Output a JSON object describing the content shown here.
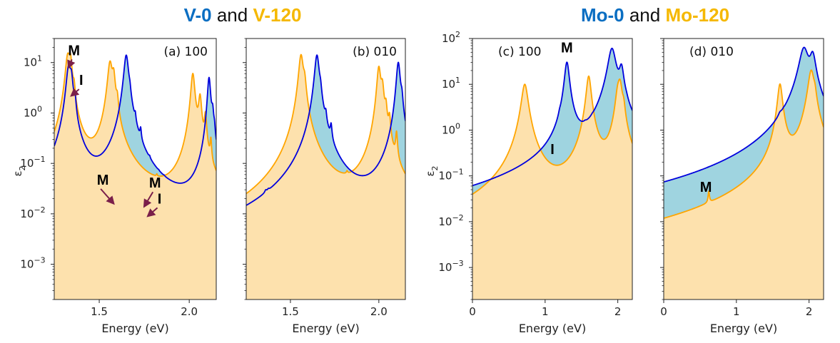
{
  "titles": {
    "left": {
      "a": "V-0",
      "and": " and ",
      "b": "V-120"
    },
    "right": {
      "a": "Mo-0",
      "and": " and ",
      "b": "Mo-120"
    }
  },
  "colors": {
    "series0": "#0000dd",
    "series120": "#ffa500",
    "fill0": "#9fd4e0",
    "fill120": "#fde1ad",
    "title0": "#0a6ec2",
    "title120": "#f5b800",
    "arrow": "#7a1f4a"
  },
  "ylabel": "ε",
  "ylabel_sub": "2",
  "chart_data": [
    {
      "id": "a",
      "type": "line",
      "label": "(a) 100",
      "xlabel": "Energy (eV)",
      "ylabel": "ε2",
      "yscale": "log",
      "xlim": [
        1.25,
        2.15
      ],
      "ylim": [
        0.0002,
        30
      ],
      "xticks": [
        {
          "v": 1.5,
          "t": "1.5"
        },
        {
          "v": 2.0,
          "t": "2.0"
        }
      ],
      "yticks": [
        {
          "v": 0.001,
          "b": "10",
          "e": "−3"
        },
        {
          "v": 0.01,
          "b": "10",
          "e": "−2"
        },
        {
          "v": 0.1,
          "b": "10",
          "e": "−1"
        },
        {
          "v": 1,
          "b": "10",
          "e": "0"
        },
        {
          "v": 10,
          "b": "10",
          "e": "1"
        }
      ],
      "series": [
        {
          "name": "V-0",
          "baseline": 0.0005,
          "peaks": [
            [
              1.33,
              8,
              0.012
            ],
            [
              1.345,
              4,
              0.008
            ],
            [
              1.365,
              1.2,
              0.006
            ],
            [
              1.65,
              14,
              0.012
            ],
            [
              1.67,
              0.8,
              0.005
            ],
            [
              1.7,
              0.3,
              0.004
            ],
            [
              1.73,
              0.2,
              0.004
            ],
            [
              1.78,
              0.012,
              0.004
            ],
            [
              1.83,
              0.002,
              0.003
            ],
            [
              1.86,
              0.0015,
              0.003
            ],
            [
              2.11,
              5,
              0.008
            ],
            [
              2.13,
              0.8,
              0.006
            ],
            [
              2.14,
              0.2,
              0.004
            ]
          ]
        },
        {
          "name": "V-120",
          "baseline": 0.0004,
          "peaks": [
            [
              1.325,
              13,
              0.012
            ],
            [
              1.34,
              10,
              0.008
            ],
            [
              1.36,
              2,
              0.006
            ],
            [
              1.56,
              10,
              0.012
            ],
            [
              1.58,
              5,
              0.008
            ],
            [
              1.6,
              1.2,
              0.006
            ],
            [
              1.82,
              0.006,
              0.003
            ],
            [
              2.02,
              6,
              0.01
            ],
            [
              2.06,
              2,
              0.008
            ],
            [
              2.09,
              0.8,
              0.006
            ],
            [
              2.12,
              0.2,
              0.004
            ]
          ]
        }
      ],
      "annotations": [
        {
          "text": "M",
          "x": 1.36,
          "y": 14,
          "ax": 1.33,
          "ay": 8
        },
        {
          "text": "I",
          "x": 1.4,
          "y": 3.6,
          "ax": 1.345,
          "ay": 2.2
        },
        {
          "text": "M",
          "x": 1.52,
          "y": 0.038,
          "ax": 1.58,
          "ay": 0.016
        },
        {
          "text": "M",
          "x": 1.81,
          "y": 0.033,
          "ax": 1.75,
          "ay": 0.014
        },
        {
          "text": "I",
          "x": 1.835,
          "y": 0.016,
          "ax": 1.77,
          "ay": 0.009
        }
      ]
    },
    {
      "id": "b",
      "type": "line",
      "label": "(b) 010",
      "xlabel": "Energy (eV)",
      "ylabel": "ε2",
      "yscale": "log",
      "xlim": [
        1.25,
        2.15
      ],
      "ylim": [
        0.0002,
        30
      ],
      "xticks": [
        {
          "v": 1.5,
          "t": "1.5"
        },
        {
          "v": 2.0,
          "t": "2.0"
        }
      ],
      "yticks": [],
      "series": [
        {
          "name": "V-0",
          "baseline": 0.0004,
          "peaks": [
            [
              1.36,
              0.003,
              0.006
            ],
            [
              1.375,
              0.002,
              0.006
            ],
            [
              1.65,
              14,
              0.012
            ],
            [
              1.67,
              1.2,
              0.006
            ],
            [
              1.7,
              0.4,
              0.005
            ],
            [
              1.73,
              0.3,
              0.005
            ],
            [
              2.11,
              10,
              0.01
            ],
            [
              2.13,
              1.2,
              0.006
            ]
          ]
        },
        {
          "name": "V-120",
          "baseline": 0.0006,
          "peaks": [
            [
              1.56,
              14,
              0.012
            ],
            [
              1.58,
              3,
              0.008
            ],
            [
              1.82,
              0.008,
              0.004
            ],
            [
              2.0,
              8,
              0.01
            ],
            [
              2.02,
              3,
              0.008
            ],
            [
              2.04,
              1,
              0.006
            ],
            [
              2.06,
              0.6,
              0.006
            ],
            [
              2.1,
              0.3,
              0.005
            ]
          ]
        }
      ],
      "annotations": []
    },
    {
      "id": "c",
      "type": "line",
      "label": "(c) 100",
      "xlabel": "Energy (eV)",
      "ylabel": "ε2",
      "yscale": "log",
      "xlim": [
        0,
        2.2
      ],
      "ylim": [
        0.0002,
        100
      ],
      "xticks": [
        {
          "v": 0,
          "t": "0"
        },
        {
          "v": 1,
          "t": "1"
        },
        {
          "v": 2,
          "t": "2"
        }
      ],
      "yticks": [
        {
          "v": 0.001,
          "b": "10",
          "e": "−3"
        },
        {
          "v": 0.01,
          "b": "10",
          "e": "−2"
        },
        {
          "v": 0.1,
          "b": "10",
          "e": "−1"
        },
        {
          "v": 1,
          "b": "10",
          "e": "0"
        },
        {
          "v": 10,
          "b": "10",
          "e": "1"
        },
        {
          "v": 100,
          "b": "10",
          "e": "2"
        }
      ],
      "series": [
        {
          "name": "Mo-0",
          "baseline": 0.00045,
          "peaks": [
            [
              1.2,
              0.25,
              0.015
            ],
            [
              1.3,
              30,
              0.03
            ],
            [
              1.55,
              0.08,
              0.02
            ],
            [
              1.65,
              0.05,
              0.015
            ],
            [
              1.92,
              60,
              0.05
            ],
            [
              2.05,
              20,
              0.03
            ],
            [
              2.12,
              0.3,
              0.02
            ]
          ]
        },
        {
          "name": "Mo-120",
          "baseline": 0.00035,
          "peaks": [
            [
              0.62,
              0.008,
              0.01
            ],
            [
              0.72,
              10,
              0.04
            ],
            [
              1.6,
              15,
              0.03
            ],
            [
              2.0,
              5,
              0.03
            ],
            [
              2.03,
              10,
              0.03
            ],
            [
              2.08,
              2,
              0.02
            ]
          ]
        }
      ],
      "annotations": [
        {
          "text": "M",
          "x": 1.3,
          "y": 50
        },
        {
          "text": "I",
          "x": 1.1,
          "y": 0.3
        }
      ]
    },
    {
      "id": "d",
      "type": "line",
      "label": "(d) 010",
      "xlabel": "Energy (eV)",
      "ylabel": "ε2",
      "yscale": "log",
      "xlim": [
        0,
        2.2
      ],
      "ylim": [
        0.0002,
        100
      ],
      "xticks": [
        {
          "v": 0,
          "t": "0"
        },
        {
          "v": 1,
          "t": "1"
        },
        {
          "v": 2,
          "t": "2"
        }
      ],
      "yticks": [],
      "series": [
        {
          "name": "Mo-0",
          "baseline": 0.0006,
          "peaks": [
            [
              1.2,
              0.0012,
              0.01
            ],
            [
              1.3,
              0.0015,
              0.01
            ],
            [
              1.6,
              0.3,
              0.025
            ],
            [
              1.65,
              0.1,
              0.015
            ],
            [
              1.93,
              60,
              0.06
            ],
            [
              2.05,
              40,
              0.04
            ],
            [
              2.15,
              0.2,
              0.02
            ]
          ]
        },
        {
          "name": "Mo-120",
          "baseline": 0.00035,
          "peaks": [
            [
              0.62,
              0.02,
              0.01
            ],
            [
              1.6,
              10,
              0.03
            ],
            [
              2.03,
              20,
              0.04
            ],
            [
              2.08,
              3,
              0.02
            ]
          ]
        }
      ],
      "annotations": [
        {
          "text": "M",
          "x": 0.58,
          "y": 0.045
        }
      ]
    }
  ]
}
